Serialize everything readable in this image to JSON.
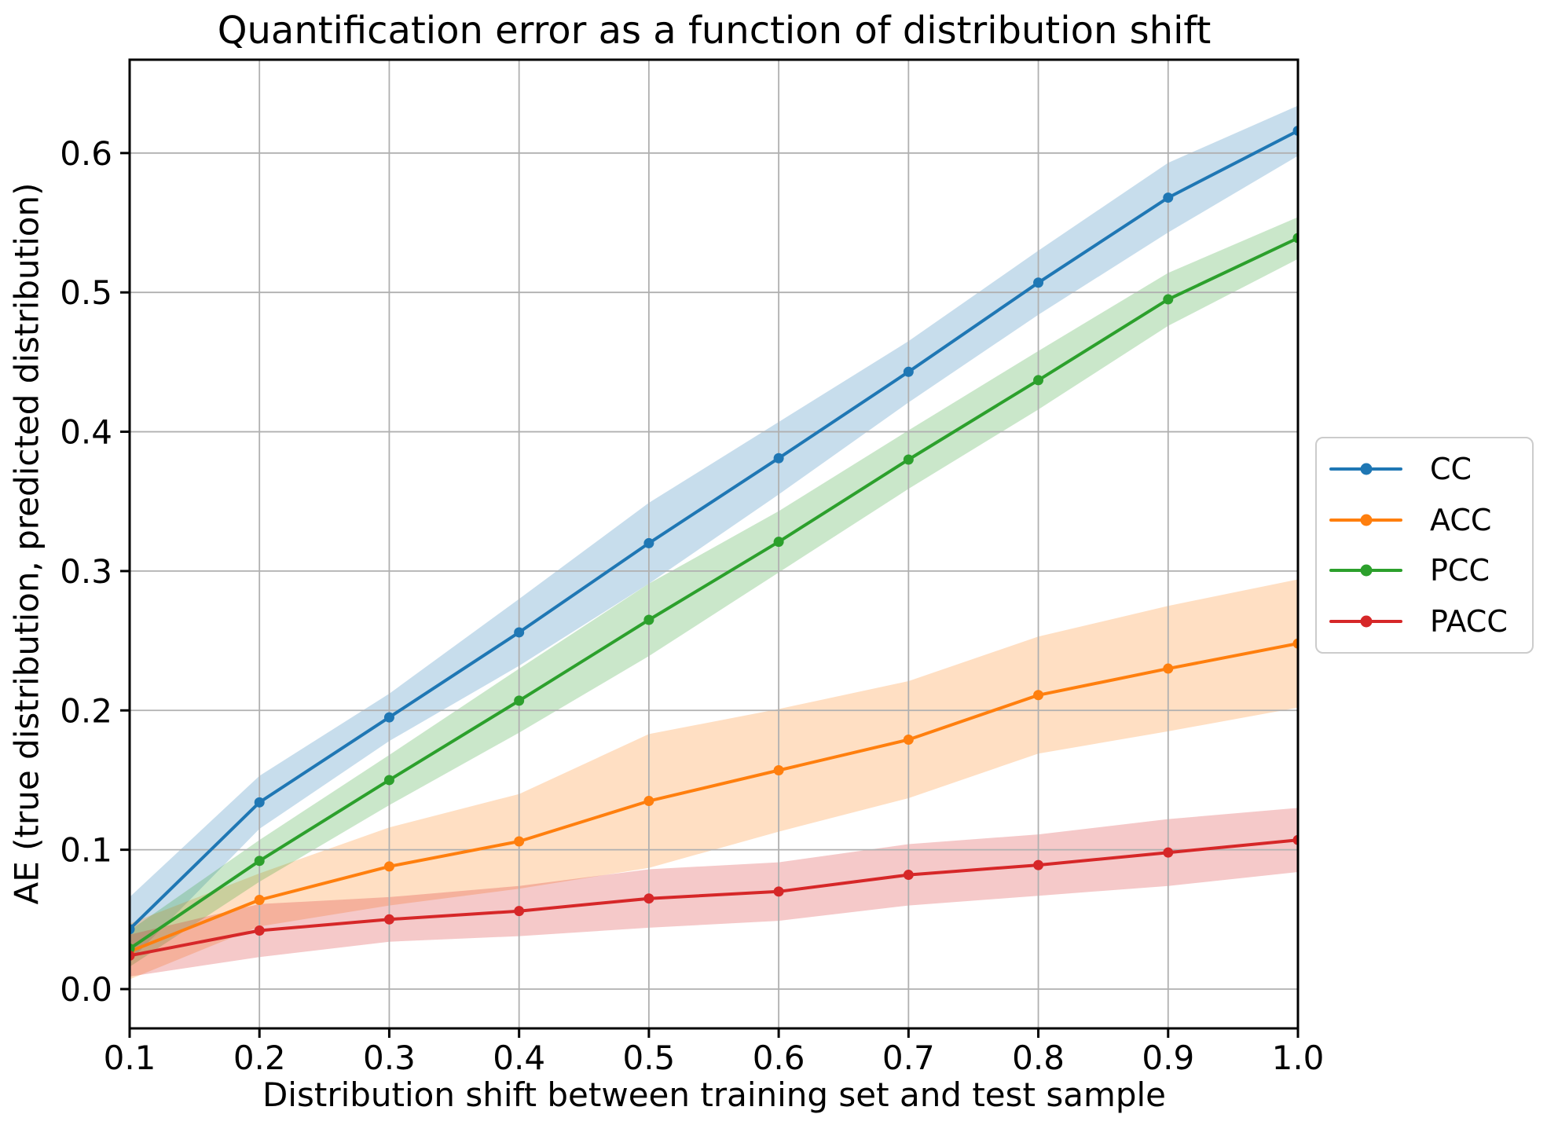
{
  "chart_data": {
    "type": "line",
    "title": "Quantification error as a function of distribution shift",
    "xlabel": "Distribution shift between training set and test sample",
    "ylabel": "AE (true distribution, predicted distribution)",
    "x": [
      0.1,
      0.2,
      0.3,
      0.4,
      0.5,
      0.6,
      0.7,
      0.8,
      0.9,
      1.0
    ],
    "x_tick_labels": [
      "0.1",
      "0.2",
      "0.3",
      "0.4",
      "0.5",
      "0.6",
      "0.7",
      "0.8",
      "0.9",
      "1.0"
    ],
    "y_ticks": [
      0.0,
      0.1,
      0.2,
      0.3,
      0.4,
      0.5,
      0.6
    ],
    "y_tick_labels": [
      "0.0",
      "0.1",
      "0.2",
      "0.3",
      "0.4",
      "0.5",
      "0.6"
    ],
    "xlim": [
      0.1,
      1.0
    ],
    "ylim": [
      -0.0282,
      0.667
    ],
    "grid": true,
    "grid_color": "#b0b0b0",
    "band_opacity": 0.25,
    "marker": "circle",
    "legend_position": "right-outside",
    "series": [
      {
        "name": "CC",
        "color": "#1f77b4",
        "values": [
          0.043,
          0.134,
          0.195,
          0.256,
          0.32,
          0.381,
          0.443,
          0.507,
          0.568,
          0.616
        ],
        "band_half_width": [
          0.023,
          0.019,
          0.017,
          0.024,
          0.029,
          0.026,
          0.022,
          0.023,
          0.025,
          0.018
        ]
      },
      {
        "name": "ACC",
        "color": "#ff7f0e",
        "values": [
          0.027,
          0.064,
          0.088,
          0.106,
          0.135,
          0.157,
          0.179,
          0.211,
          0.23,
          0.248
        ],
        "band_half_width": [
          0.02,
          0.019,
          0.028,
          0.034,
          0.048,
          0.044,
          0.042,
          0.042,
          0.045,
          0.046
        ]
      },
      {
        "name": "PCC",
        "color": "#2ca02c",
        "values": [
          0.029,
          0.092,
          0.15,
          0.207,
          0.265,
          0.321,
          0.38,
          0.437,
          0.495,
          0.539
        ],
        "band_half_width": [
          0.013,
          0.015,
          0.018,
          0.023,
          0.026,
          0.022,
          0.021,
          0.021,
          0.019,
          0.015
        ]
      },
      {
        "name": "PACC",
        "color": "#d62728",
        "values": [
          0.024,
          0.042,
          0.05,
          0.056,
          0.065,
          0.07,
          0.082,
          0.089,
          0.098,
          0.107
        ],
        "band_half_width": [
          0.015,
          0.019,
          0.016,
          0.018,
          0.021,
          0.021,
          0.022,
          0.022,
          0.024,
          0.023
        ]
      }
    ]
  }
}
